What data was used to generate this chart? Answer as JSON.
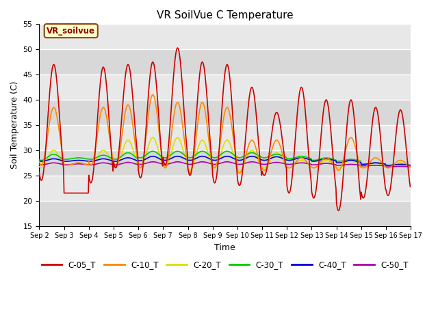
{
  "title": "VR SoilVue C Temperature",
  "xlabel": "Time",
  "ylabel": "Soil Temperature (C)",
  "ylim": [
    15,
    55
  ],
  "annotation": "VR_soilvue",
  "bg_light": "#e8e8e8",
  "bg_dark": "#d8d8d8",
  "legend_colors": {
    "C-05_T": "#cc0000",
    "C-10_T": "#ff8800",
    "C-20_T": "#dddd00",
    "C-30_T": "#00cc00",
    "C-40_T": "#0000dd",
    "C-50_T": "#aa00aa"
  },
  "xtick_labels": [
    "Sep 2",
    "Sep 3",
    "Sep 4",
    "Sep 5",
    "Sep 6",
    "Sep 7",
    "Sep 8",
    "Sep 9",
    "Sep 10",
    "Sep 11",
    "Sep 12",
    "Sep 13",
    "Sep 14",
    "Sep 15",
    "Sep 16",
    "Sep 17"
  ],
  "ytick_labels": [
    15,
    20,
    25,
    30,
    35,
    40,
    45,
    50,
    55
  ],
  "num_days": 15,
  "spd": 48,
  "peak_hour": 14.0,
  "c05_base": 27.5,
  "c05_peaks": [
    47.0,
    21.5,
    46.5,
    47.0,
    47.5,
    50.3,
    47.5,
    47.0,
    42.5,
    37.5,
    42.5,
    40.0,
    40.0,
    38.5,
    38.0
  ],
  "c05_troughs": [
    24.0,
    21.5,
    23.5,
    26.5,
    24.5,
    27.0,
    25.0,
    23.5,
    23.0,
    25.0,
    21.5,
    20.5,
    18.0,
    20.5,
    21.0
  ],
  "c10_base": 27.5,
  "c10_peaks": [
    38.5,
    27.5,
    38.5,
    39.0,
    41.0,
    39.5,
    39.5,
    38.5,
    32.0,
    32.0,
    28.5,
    28.5,
    32.5,
    28.5,
    28.0
  ],
  "c10_troughs": [
    27.0,
    27.0,
    27.0,
    26.5,
    26.5,
    26.5,
    25.5,
    26.5,
    25.5,
    26.0,
    26.5,
    26.5,
    26.0,
    26.5,
    26.5
  ],
  "c20_base": 27.5,
  "c20_peaks": [
    30.0,
    27.5,
    30.0,
    32.0,
    32.5,
    32.5,
    32.0,
    32.0,
    30.0,
    29.5,
    28.0,
    28.0,
    28.0,
    27.5,
    27.5
  ],
  "c20_troughs": [
    26.5,
    27.0,
    27.0,
    26.5,
    26.5,
    26.5,
    26.0,
    26.5,
    26.0,
    26.5,
    26.5,
    26.5,
    26.5,
    26.5,
    26.5
  ],
  "c30_base": 28.5,
  "c30_peaks": [
    29.2,
    28.5,
    29.0,
    29.5,
    29.8,
    29.8,
    29.8,
    29.8,
    29.5,
    29.2,
    28.8,
    28.5,
    28.2,
    27.5,
    27.2
  ],
  "c30_troughs": [
    28.0,
    28.2,
    28.2,
    28.2,
    28.5,
    28.5,
    28.5,
    28.5,
    28.5,
    28.5,
    28.3,
    28.0,
    27.8,
    27.2,
    27.0
  ],
  "c40_base": 28.0,
  "c40_peaks": [
    28.3,
    28.0,
    28.3,
    28.5,
    28.8,
    28.8,
    28.8,
    28.8,
    28.8,
    28.7,
    28.5,
    28.3,
    28.0,
    27.5,
    27.2
  ],
  "c40_troughs": [
    27.8,
    27.8,
    27.8,
    27.8,
    27.9,
    28.0,
    28.0,
    28.0,
    28.0,
    28.0,
    28.0,
    27.8,
    27.5,
    27.2,
    27.0
  ],
  "c50_base": 27.3,
  "c50_peaks": [
    27.5,
    27.3,
    27.5,
    27.6,
    27.7,
    27.7,
    27.7,
    27.7,
    27.7,
    27.6,
    27.5,
    27.4,
    27.2,
    27.0,
    26.8
  ],
  "c50_troughs": [
    27.1,
    27.1,
    27.1,
    27.1,
    27.2,
    27.2,
    27.2,
    27.2,
    27.2,
    27.2,
    27.2,
    27.1,
    27.0,
    26.9,
    26.7
  ]
}
